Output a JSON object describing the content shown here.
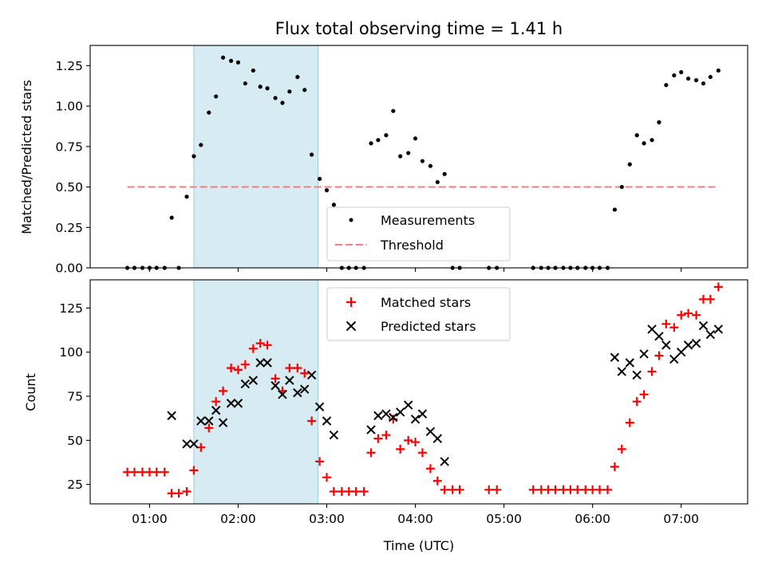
{
  "chart_data": [
    {
      "type": "scatter",
      "title": "Flux total observing time = 1.41 h",
      "ylabel": "Matched/Predicted stars",
      "xlabel": "",
      "x_unit": "hours UTC",
      "xlim": [
        0.33,
        7.75
      ],
      "ylim": [
        0.0,
        1.375
      ],
      "yticks": [
        "0.00",
        "0.25",
        "0.50",
        "0.75",
        "1.00",
        "1.25"
      ],
      "ytick_values": [
        0.0,
        0.25,
        0.5,
        0.75,
        1.0,
        1.25
      ],
      "xtick_values": [
        1,
        2,
        3,
        4,
        5,
        6,
        7
      ],
      "shaded_interval": [
        1.5,
        2.9
      ],
      "legend_position": "lower-center",
      "series": [
        {
          "name": "Measurements",
          "marker": "dot",
          "color": "#000000",
          "x": [
            0.75,
            0.83,
            0.92,
            1.0,
            1.08,
            1.17,
            1.25,
            1.33,
            1.42,
            1.5,
            1.58,
            1.67,
            1.75,
            1.83,
            1.92,
            2.0,
            2.08,
            2.17,
            2.25,
            2.33,
            2.42,
            2.5,
            2.58,
            2.67,
            2.75,
            2.83,
            2.92,
            3.0,
            3.08,
            3.17,
            3.25,
            3.33,
            3.42,
            3.5,
            3.58,
            3.67,
            3.75,
            3.83,
            3.92,
            4.0,
            4.08,
            4.17,
            4.25,
            4.33,
            4.42,
            4.5,
            4.83,
            4.92,
            5.33,
            5.42,
            5.5,
            5.58,
            5.67,
            5.75,
            5.83,
            5.92,
            6.0,
            6.08,
            6.17,
            6.25,
            6.33,
            6.42,
            6.5,
            6.58,
            6.67,
            6.75,
            6.83,
            6.92,
            7.0,
            7.08,
            7.17,
            7.25,
            7.33,
            7.42
          ],
          "y": [
            0,
            0,
            0,
            0,
            0,
            0,
            0.31,
            0,
            0.44,
            0.69,
            0.76,
            0.96,
            1.06,
            1.3,
            1.28,
            1.27,
            1.14,
            1.22,
            1.12,
            1.11,
            1.05,
            1.02,
            1.09,
            1.18,
            1.1,
            0.7,
            0.55,
            0.48,
            0.39,
            0,
            0,
            0,
            0,
            0.77,
            0.79,
            0.82,
            0.97,
            0.69,
            0.71,
            0.8,
            0.66,
            0.63,
            0.53,
            0.58,
            0,
            0,
            0,
            0,
            0,
            0,
            0,
            0,
            0,
            0,
            0,
            0,
            0,
            0,
            0,
            0.36,
            0.5,
            0.64,
            0.82,
            0.77,
            0.79,
            0.9,
            1.13,
            1.19,
            1.21,
            1.17,
            1.16,
            1.14,
            1.18,
            1.22
          ]
        },
        {
          "name": "Threshold",
          "type": "line",
          "style": "dashed",
          "color": "#f08080",
          "x": [
            0.75,
            7.42
          ],
          "y": [
            0.5,
            0.5
          ]
        }
      ]
    },
    {
      "type": "scatter",
      "title": "",
      "ylabel": "Count",
      "xlabel": "Time (UTC)",
      "x_unit": "hours UTC",
      "xlim": [
        0.33,
        7.75
      ],
      "ylim": [
        14,
        141
      ],
      "yticks": [
        "25",
        "50",
        "75",
        "100",
        "125"
      ],
      "ytick_values": [
        25,
        50,
        75,
        100,
        125
      ],
      "xticks": [
        "01:00",
        "02:00",
        "03:00",
        "04:00",
        "05:00",
        "06:00",
        "07:00"
      ],
      "xtick_values": [
        1,
        2,
        3,
        4,
        5,
        6,
        7
      ],
      "shaded_interval": [
        1.5,
        2.9
      ],
      "legend_position": "upper-center",
      "series": [
        {
          "name": "Matched stars",
          "marker": "plus",
          "color": "#ff0000",
          "x": [
            0.75,
            0.83,
            0.92,
            1.0,
            1.08,
            1.17,
            1.25,
            1.33,
            1.42,
            1.5,
            1.58,
            1.67,
            1.75,
            1.83,
            1.92,
            2.0,
            2.08,
            2.17,
            2.25,
            2.33,
            2.42,
            2.5,
            2.58,
            2.67,
            2.75,
            2.83,
            2.92,
            3.0,
            3.08,
            3.17,
            3.25,
            3.33,
            3.42,
            3.5,
            3.58,
            3.67,
            3.75,
            3.83,
            3.92,
            4.0,
            4.08,
            4.17,
            4.25,
            4.33,
            4.42,
            4.5,
            4.83,
            4.92,
            5.33,
            5.42,
            5.5,
            5.58,
            5.67,
            5.75,
            5.83,
            5.92,
            6.0,
            6.08,
            6.17,
            6.25,
            6.33,
            6.42,
            6.5,
            6.58,
            6.67,
            6.75,
            6.83,
            6.92,
            7.0,
            7.08,
            7.17,
            7.25,
            7.33,
            7.42
          ],
          "y": [
            32,
            32,
            32,
            32,
            32,
            32,
            20,
            20,
            21,
            33,
            46,
            57,
            72,
            78,
            91,
            90,
            93,
            102,
            105,
            104,
            85,
            78,
            91,
            91,
            88,
            61,
            38,
            29,
            21,
            21,
            21,
            21,
            21,
            43,
            51,
            53,
            62,
            45,
            50,
            49,
            43,
            34,
            27,
            22,
            22,
            22,
            22,
            22,
            22,
            22,
            22,
            22,
            22,
            22,
            22,
            22,
            22,
            22,
            22,
            35,
            45,
            60,
            72,
            76,
            89,
            98,
            116,
            114,
            121,
            122,
            121,
            130,
            130,
            137
          ]
        },
        {
          "name": "Predicted stars",
          "marker": "x",
          "color": "#000000",
          "x": [
            1.25,
            1.42,
            1.5,
            1.58,
            1.67,
            1.75,
            1.83,
            1.92,
            2.0,
            2.08,
            2.17,
            2.25,
            2.33,
            2.42,
            2.5,
            2.58,
            2.67,
            2.75,
            2.83,
            2.92,
            3.0,
            3.08,
            3.5,
            3.58,
            3.67,
            3.75,
            3.83,
            3.92,
            4.0,
            4.08,
            4.17,
            4.25,
            4.33,
            6.25,
            6.33,
            6.42,
            6.5,
            6.58,
            6.67,
            6.75,
            6.83,
            6.92,
            7.0,
            7.08,
            7.17,
            7.25,
            7.33,
            7.42
          ],
          "y": [
            64,
            48,
            48,
            61,
            61,
            67,
            60,
            71,
            71,
            82,
            84,
            94,
            94,
            81,
            76,
            84,
            77,
            79,
            87,
            69,
            61,
            53,
            56,
            64,
            65,
            63,
            66,
            70,
            62,
            65,
            55,
            51,
            38,
            97,
            89,
            94,
            87,
            99,
            113,
            109,
            104,
            96,
            100,
            104,
            105,
            115,
            110,
            113
          ]
        }
      ]
    }
  ],
  "legend": {
    "top": [
      "Measurements",
      "Threshold"
    ],
    "bottom": [
      "Matched stars",
      "Predicted stars"
    ]
  }
}
